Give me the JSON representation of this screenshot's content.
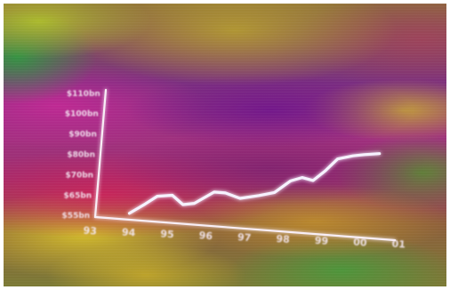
{
  "chart_data": {
    "type": "line",
    "title": "",
    "xlabel": "",
    "ylabel": "",
    "x": [
      "93",
      "94",
      "95",
      "96",
      "97",
      "98",
      "99",
      "00",
      "01"
    ],
    "y_tick_labels": [
      "$55bn",
      "$65bn",
      "$70bn",
      "$80bn",
      "$90bn",
      "$100bn",
      "$110bn"
    ],
    "series": [
      {
        "line_color": "#f6f2ff",
        "points": [
          [
            93.9,
            53
          ],
          [
            94.3,
            58
          ],
          [
            94.6,
            62
          ],
          [
            95.0,
            63
          ],
          [
            95.3,
            59
          ],
          [
            95.6,
            60
          ],
          [
            96.1,
            66
          ],
          [
            96.4,
            66
          ],
          [
            96.8,
            64
          ],
          [
            97.3,
            66
          ],
          [
            97.7,
            68
          ],
          [
            98.1,
            74
          ],
          [
            98.4,
            76
          ],
          [
            98.7,
            75
          ],
          [
            99.0,
            80
          ],
          [
            99.3,
            86
          ],
          [
            99.7,
            88
          ],
          [
            100.0,
            89
          ],
          [
            100.4,
            90
          ]
        ]
      }
    ],
    "xlim": [
      93,
      101
    ],
    "ylim": [
      50,
      110
    ],
    "grid": false,
    "legend": "none"
  }
}
